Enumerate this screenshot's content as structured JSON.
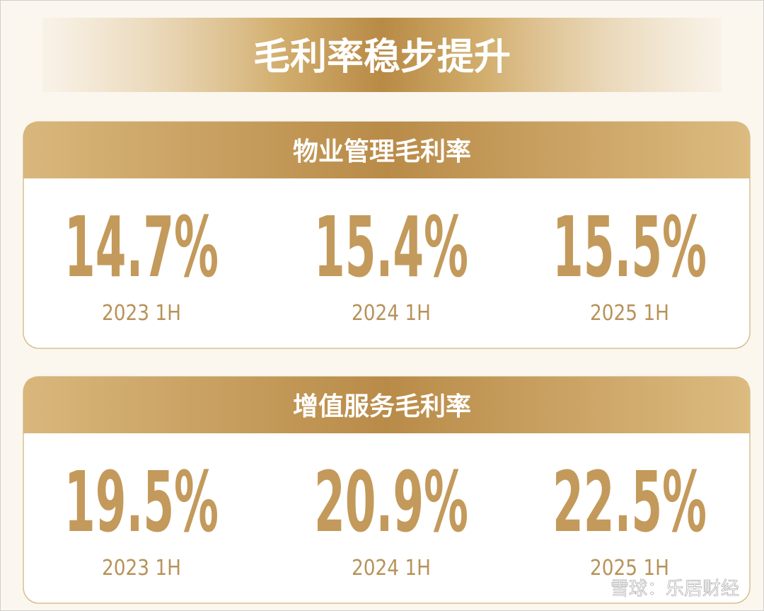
{
  "title": "毛利率稳步提升",
  "panels": [
    {
      "header": "物业管理毛利率",
      "items": [
        {
          "value": "14.7%",
          "period": "2023 1H"
        },
        {
          "value": "15.4%",
          "period": "2024 1H"
        },
        {
          "value": "15.5%",
          "period": "2025 1H"
        }
      ]
    },
    {
      "header": "增值服务毛利率",
      "items": [
        {
          "value": "19.5%",
          "period": "2023 1H"
        },
        {
          "value": "20.9%",
          "period": "2024 1H"
        },
        {
          "value": "22.5%",
          "period": "2025 1H"
        }
      ]
    }
  ],
  "watermark": "雪球：乐居财经"
}
